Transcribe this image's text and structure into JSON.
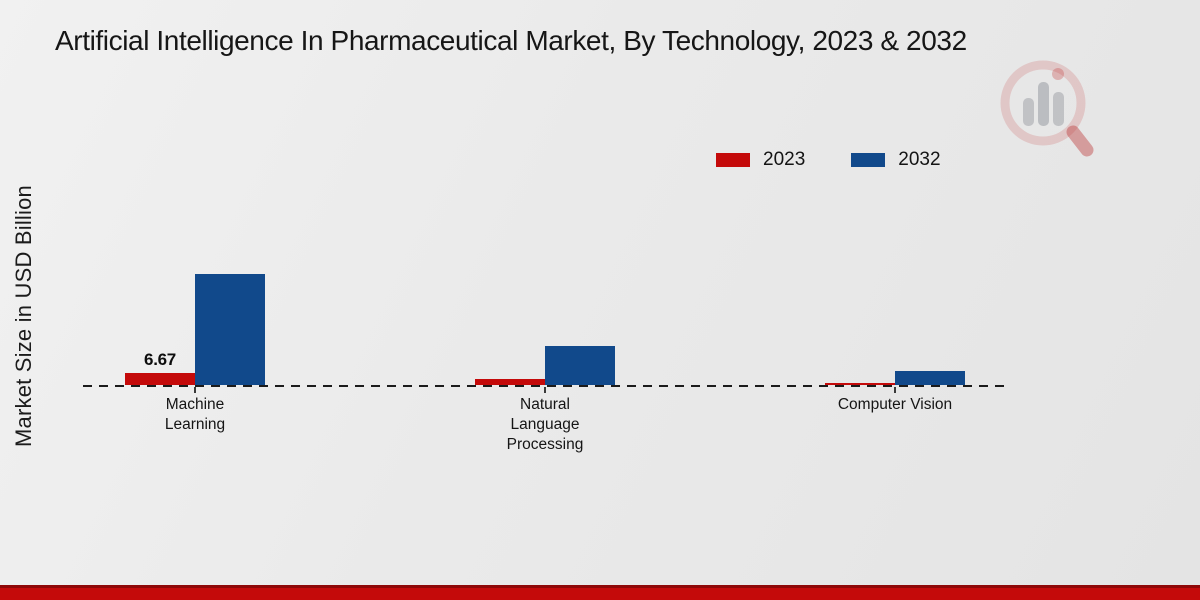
{
  "page": {
    "title": "Artificial Intelligence In Pharmaceutical Market, By Technology, 2023 & 2032",
    "y_axis_label": "Market Size in USD Billion"
  },
  "legend": [
    {
      "label": "2023",
      "color": "#c40a0a"
    },
    {
      "label": "2032",
      "color": "#11498b"
    }
  ],
  "chart_data": {
    "type": "bar",
    "title": "Artificial Intelligence In Pharmaceutical Market, By Technology, 2023 & 2032",
    "categories": [
      "Machine Learning",
      "Natural Language Processing",
      "Computer Vision"
    ],
    "series": [
      {
        "name": "2023",
        "color": "#c40a0a",
        "values": [
          6.67,
          3.3,
          1.1
        ]
      },
      {
        "name": "2032",
        "color": "#11498b",
        "values": [
          61.5,
          21.6,
          7.5
        ]
      }
    ],
    "data_labels": [
      {
        "category": "Machine Learning",
        "series": "2023",
        "text": "6.67"
      }
    ],
    "xlabel": "",
    "ylabel": "Market Size in USD Billion",
    "ylim": [
      0,
      65
    ],
    "grid": false,
    "baseline_style": "dashed",
    "legend_position": "top-right"
  },
  "branding": {
    "watermark_icon": "market-research-magnifier-logo"
  },
  "footer": {
    "bar_color": "#c40a0a",
    "bar_top_color": "#8e0808"
  }
}
